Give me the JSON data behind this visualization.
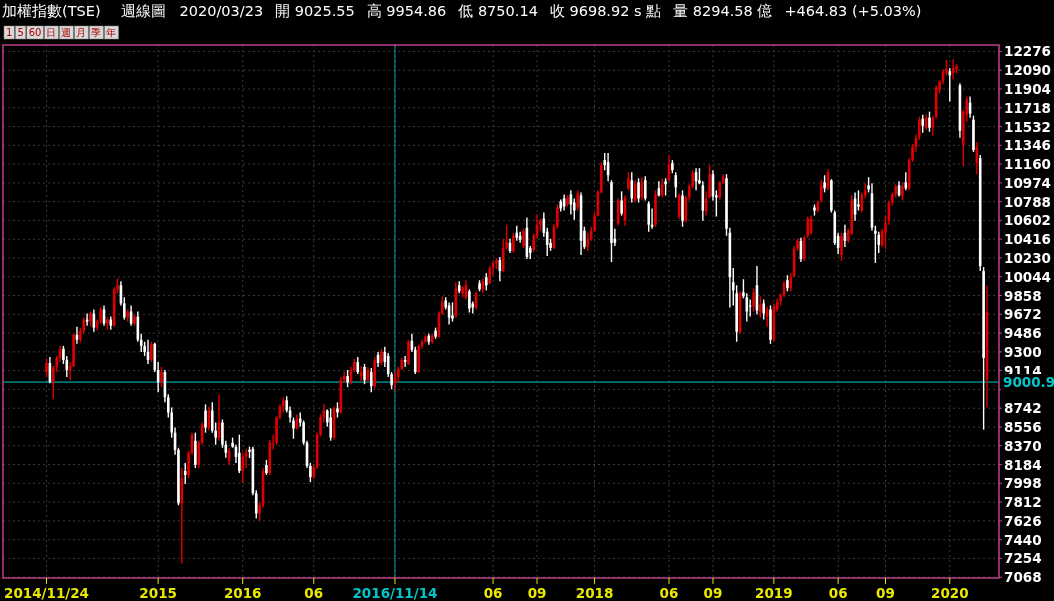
{
  "chart_data": {
    "type": "candlestick",
    "title": "加權指數(TSE)",
    "subtitle": "週線圖",
    "annotations": [
      "2020/03/23",
      "開 9025.55",
      "高 9954.86",
      "低 8750.14",
      "收 9698.92 s 點",
      "量 8294.58 億",
      "+464.83 (+5.03%)",
      "1",
      "5",
      "60",
      "日",
      "週",
      "月",
      "季",
      "年"
    ],
    "categories": [
      "2014/11/24",
      null,
      null,
      null,
      null,
      null,
      null,
      null,
      null,
      null,
      null,
      null,
      null,
      null,
      null,
      null,
      null,
      null,
      null,
      null,
      null,
      null,
      null,
      null,
      null,
      null,
      null,
      null,
      null,
      null,
      null,
      null,
      null,
      "2015",
      null,
      null,
      null,
      null,
      null,
      null,
      null,
      null,
      null,
      null,
      null,
      null,
      null,
      null,
      null,
      null,
      null,
      null,
      null,
      null,
      null,
      null,
      null,
      null,
      "2016",
      null,
      null,
      null,
      null,
      null,
      null,
      null,
      null,
      null,
      null,
      null,
      null,
      null,
      null,
      null,
      null,
      null,
      null,
      null,
      null,
      "06",
      null,
      null,
      null,
      null,
      null,
      null,
      null,
      null,
      null,
      null,
      null,
      null,
      null,
      null,
      null,
      null,
      null,
      null,
      null,
      null,
      null,
      null,
      null,
      "2016/11/14",
      null,
      null,
      null,
      null,
      null,
      null,
      null,
      null,
      null,
      null,
      null,
      null,
      null,
      null,
      null,
      null,
      null,
      null,
      null,
      null,
      null,
      null,
      null,
      null,
      null,
      null,
      null,
      null,
      "06",
      null,
      null,
      null,
      null,
      null,
      null,
      null,
      null,
      null,
      null,
      null,
      null,
      "09",
      null,
      null,
      null,
      null,
      null,
      null,
      null,
      null,
      null,
      null,
      null,
      null,
      null,
      null,
      null,
      null,
      "2018",
      null,
      null,
      null,
      null,
      null,
      null,
      null,
      null,
      null,
      null,
      null,
      null,
      null,
      null,
      null,
      null,
      null,
      null,
      null,
      null,
      null,
      "06",
      null,
      null,
      null,
      null,
      null,
      null,
      null,
      null,
      null,
      null,
      null,
      null,
      "09",
      null,
      null,
      null,
      null,
      null,
      null,
      null,
      null,
      null,
      null,
      null,
      null,
      null,
      null,
      null,
      null,
      null,
      "2019",
      null,
      null,
      null,
      null,
      null,
      null,
      null,
      null,
      null,
      null,
      null,
      null,
      null,
      null,
      null,
      null,
      null,
      null,
      "06",
      null,
      null,
      null,
      null,
      null,
      null,
      null,
      null,
      null,
      null,
      null,
      null,
      null,
      "09",
      null,
      null,
      null,
      null,
      null,
      null,
      null,
      null,
      null,
      null,
      null,
      null,
      null,
      null,
      null,
      null,
      null,
      null,
      "2020",
      null,
      null,
      null,
      null,
      null,
      null,
      null,
      null,
      null,
      null,
      null
    ],
    "ohlc": [
      [
        9100,
        9230,
        9050,
        9190
      ],
      [
        9190,
        9250,
        8990,
        9000
      ],
      [
        9000,
        9160,
        8830,
        9150
      ],
      [
        9150,
        9260,
        9100,
        9240
      ],
      [
        9240,
        9360,
        9200,
        9330
      ],
      [
        9330,
        9360,
        9180,
        9220
      ],
      [
        9220,
        9260,
        9050,
        9120
      ],
      [
        9120,
        9200,
        9020,
        9160
      ],
      [
        9160,
        9480,
        9150,
        9470
      ],
      [
        9470,
        9550,
        9380,
        9420
      ],
      [
        9420,
        9540,
        9390,
        9510
      ],
      [
        9510,
        9640,
        9480,
        9620
      ],
      [
        9620,
        9680,
        9560,
        9600
      ],
      [
        9600,
        9700,
        9550,
        9680
      ],
      [
        9680,
        9720,
        9500,
        9540
      ],
      [
        9540,
        9620,
        9510,
        9600
      ],
      [
        9600,
        9740,
        9580,
        9720
      ],
      [
        9720,
        9760,
        9560,
        9580
      ],
      [
        9580,
        9640,
        9520,
        9620
      ],
      [
        9620,
        9650,
        9520,
        9560
      ],
      [
        9560,
        9940,
        9550,
        9920
      ],
      [
        9920,
        10030,
        9880,
        9960
      ],
      [
        9960,
        10000,
        9760,
        9780
      ],
      [
        9780,
        9840,
        9620,
        9640
      ],
      [
        9640,
        9720,
        9600,
        9700
      ],
      [
        9700,
        9760,
        9560,
        9580
      ],
      [
        9580,
        9670,
        9560,
        9650
      ],
      [
        9650,
        9700,
        9400,
        9420
      ],
      [
        9420,
        9480,
        9300,
        9360
      ],
      [
        9360,
        9400,
        9260,
        9300
      ],
      [
        9300,
        9420,
        9180,
        9220
      ],
      [
        9220,
        9400,
        9200,
        9380
      ],
      [
        9380,
        9390,
        9100,
        9120
      ],
      [
        9120,
        9200,
        8900,
        9000
      ],
      [
        9000,
        9150,
        8950,
        9100
      ],
      [
        9100,
        9120,
        8800,
        8850
      ],
      [
        8850,
        8880,
        8650,
        8700
      ],
      [
        8700,
        8750,
        8450,
        8500
      ],
      [
        8500,
        8550,
        8280,
        8330
      ],
      [
        8330,
        8350,
        7780,
        7800
      ],
      [
        7800,
        8150,
        7203,
        8050
      ],
      [
        8120,
        8200,
        7990,
        8080
      ],
      [
        8080,
        8320,
        8050,
        8300
      ],
      [
        8300,
        8500,
        8280,
        8480
      ],
      [
        8420,
        8500,
        8150,
        8180
      ],
      [
        8180,
        8420,
        8150,
        8400
      ],
      [
        8400,
        8600,
        8380,
        8580
      ],
      [
        8720,
        8780,
        8500,
        8550
      ],
      [
        8550,
        8760,
        8520,
        8720
      ],
      [
        8720,
        8800,
        8500,
        8520
      ],
      [
        8520,
        8600,
        8380,
        8450
      ],
      [
        8450,
        8880,
        8420,
        8600
      ],
      [
        8600,
        8630,
        8350,
        8380
      ],
      [
        8380,
        8420,
        8250,
        8300
      ],
      [
        8220,
        8350,
        8180,
        8320
      ],
      [
        8400,
        8450,
        8350,
        8360
      ],
      [
        8360,
        8380,
        8200,
        8260
      ],
      [
        8300,
        8480,
        8100,
        8120
      ],
      [
        8120,
        8300,
        8000,
        8260
      ],
      [
        8260,
        8340,
        8150,
        8300
      ],
      [
        8330,
        8360,
        8250,
        8310
      ],
      [
        8340,
        8360,
        7880,
        7900
      ],
      [
        7900,
        7930,
        7650,
        7700
      ],
      [
        7700,
        7810,
        7627,
        7780
      ],
      [
        7780,
        8150,
        7760,
        8120
      ],
      [
        8180,
        8230,
        8080,
        8100
      ],
      [
        8100,
        8430,
        8080,
        8400
      ],
      [
        8400,
        8480,
        8330,
        8400
      ],
      [
        8400,
        8660,
        8380,
        8650
      ],
      [
        8650,
        8780,
        8630,
        8760
      ],
      [
        8760,
        8850,
        8700,
        8820
      ],
      [
        8820,
        8860,
        8700,
        8720
      ],
      [
        8720,
        8760,
        8600,
        8650
      ],
      [
        8620,
        8650,
        8440,
        8540
      ],
      [
        8540,
        8680,
        8530,
        8640
      ],
      [
        8640,
        8700,
        8560,
        8600
      ],
      [
        8600,
        8620,
        8380,
        8400
      ],
      [
        8400,
        8420,
        8150,
        8170
      ],
      [
        8170,
        8200,
        8010,
        8060
      ],
      [
        8060,
        8180,
        8040,
        8160
      ],
      [
        8160,
        8500,
        8140,
        8480
      ],
      [
        8480,
        8680,
        8460,
        8650
      ],
      [
        8650,
        8780,
        8600,
        8720
      ],
      [
        8720,
        8730,
        8560,
        8600
      ],
      [
        8650,
        8740,
        8420,
        8450
      ],
      [
        8450,
        8760,
        8430,
        8740
      ],
      [
        8740,
        8800,
        8650,
        8700
      ],
      [
        8700,
        9050,
        8690,
        9020
      ],
      [
        9020,
        9100,
        8990,
        9060
      ],
      [
        9060,
        9120,
        8950,
        9000
      ],
      [
        9000,
        9150,
        8980,
        9120
      ],
      [
        9120,
        9230,
        9100,
        9200
      ],
      [
        9200,
        9250,
        9080,
        9100
      ],
      [
        9060,
        9160,
        9010,
        9100
      ],
      [
        9150,
        9180,
        8980,
        9020
      ],
      [
        9020,
        9150,
        9000,
        9120
      ],
      [
        9100,
        9140,
        8900,
        8960
      ],
      [
        8960,
        9250,
        8940,
        9220
      ],
      [
        9270,
        9300,
        9150,
        9190
      ],
      [
        9190,
        9330,
        9170,
        9300
      ],
      [
        9300,
        9350,
        9150,
        9200
      ],
      [
        9260,
        9290,
        9050,
        9080
      ],
      [
        9080,
        9100,
        8930,
        8970
      ],
      [
        8990,
        9100,
        8920,
        9050
      ],
      [
        9050,
        9150,
        9000,
        9130
      ],
      [
        9130,
        9240,
        9120,
        9220
      ],
      [
        9220,
        9260,
        9150,
        9200
      ],
      [
        9180,
        9420,
        9170,
        9400
      ],
      [
        9410,
        9480,
        9300,
        9320
      ],
      [
        9320,
        9350,
        9080,
        9100
      ],
      [
        9100,
        9370,
        9090,
        9360
      ],
      [
        9360,
        9420,
        9330,
        9400
      ],
      [
        9400,
        9470,
        9390,
        9450
      ],
      [
        9460,
        9480,
        9370,
        9400
      ],
      [
        9400,
        9480,
        9380,
        9460
      ],
      [
        9510,
        9540,
        9430,
        9450
      ],
      [
        9450,
        9700,
        9440,
        9680
      ],
      [
        9680,
        9850,
        9670,
        9790
      ],
      [
        9810,
        9840,
        9720,
        9740
      ],
      [
        9760,
        9790,
        9570,
        9640
      ],
      [
        9660,
        9790,
        9600,
        9630
      ],
      [
        9650,
        9990,
        9640,
        9930
      ],
      [
        9960,
        10000,
        9880,
        9900
      ],
      [
        9880,
        9950,
        9840,
        9940
      ],
      [
        9840,
        10010,
        9820,
        9960
      ],
      [
        9900,
        9920,
        9690,
        9730
      ],
      [
        9780,
        9800,
        9680,
        9740
      ],
      [
        9740,
        9900,
        9720,
        9880
      ],
      [
        9980,
        10010,
        9900,
        9920
      ],
      [
        9920,
        10030,
        9880,
        10000
      ],
      [
        10040,
        10080,
        9910,
        9960
      ],
      [
        9980,
        10150,
        9970,
        10130
      ],
      [
        10130,
        10200,
        10060,
        10180
      ],
      [
        10180,
        10230,
        10120,
        10210
      ],
      [
        10210,
        10240,
        10000,
        10100
      ],
      [
        10100,
        10420,
        10090,
        10330
      ],
      [
        10330,
        10560,
        10310,
        10390
      ],
      [
        10380,
        10420,
        10280,
        10300
      ],
      [
        10300,
        10480,
        10280,
        10450
      ],
      [
        10480,
        10550,
        10400,
        10430
      ],
      [
        10450,
        10490,
        10380,
        10410
      ],
      [
        10350,
        10520,
        10330,
        10500
      ],
      [
        10530,
        10630,
        10220,
        10240
      ],
      [
        10330,
        10350,
        10220,
        10280
      ],
      [
        10310,
        10470,
        10290,
        10450
      ],
      [
        10450,
        10660,
        10420,
        10560
      ],
      [
        10560,
        10620,
        10500,
        10600
      ],
      [
        10620,
        10680,
        10440,
        10480
      ],
      [
        10490,
        10530,
        10250,
        10360
      ],
      [
        10380,
        10420,
        10300,
        10330
      ],
      [
        10330,
        10570,
        10320,
        10540
      ],
      [
        10540,
        10760,
        10520,
        10730
      ],
      [
        10790,
        10810,
        10690,
        10720
      ],
      [
        10820,
        10860,
        10700,
        10740
      ],
      [
        10760,
        10850,
        10740,
        10830
      ],
      [
        10860,
        10900,
        10660,
        10760
      ],
      [
        10780,
        10820,
        10610,
        10700
      ],
      [
        10730,
        10900,
        10700,
        10870
      ],
      [
        10850,
        10880,
        10260,
        10400
      ],
      [
        10500,
        10540,
        10320,
        10340
      ],
      [
        10340,
        10480,
        10300,
        10420
      ],
      [
        10420,
        10540,
        10400,
        10500
      ],
      [
        10500,
        10680,
        10490,
        10650
      ],
      [
        10650,
        10900,
        10640,
        10880
      ],
      [
        10880,
        11180,
        10870,
        11150
      ],
      [
        11200,
        11270,
        11100,
        11150
      ],
      [
        11180,
        11270,
        10990,
        11050
      ],
      [
        10980,
        11000,
        10190,
        10380
      ],
      [
        10420,
        10520,
        10350,
        10380
      ],
      [
        10570,
        10820,
        10550,
        10800
      ],
      [
        10800,
        10890,
        10650,
        10670
      ],
      [
        10600,
        10850,
        10550,
        10830
      ],
      [
        10920,
        11080,
        10900,
        11020
      ],
      [
        11000,
        11080,
        10780,
        10820
      ],
      [
        10800,
        11000,
        10780,
        10960
      ],
      [
        10980,
        11020,
        10780,
        10820
      ],
      [
        10830,
        11030,
        10800,
        10980
      ],
      [
        11000,
        11040,
        10800,
        10820
      ],
      [
        10770,
        10790,
        10490,
        10560
      ],
      [
        10560,
        10720,
        10520,
        10540
      ],
      [
        10560,
        10900,
        10540,
        10860
      ],
      [
        10920,
        10990,
        10840,
        10850
      ],
      [
        10850,
        11020,
        10830,
        10960
      ],
      [
        10990,
        11020,
        10850,
        10960
      ],
      [
        11000,
        11250,
        10990,
        11160
      ],
      [
        11170,
        11200,
        11070,
        11100
      ],
      [
        11050,
        11080,
        10830,
        10930
      ],
      [
        10640,
        10870,
        10620,
        10850
      ],
      [
        10850,
        10900,
        10540,
        10600
      ],
      [
        10600,
        10850,
        10580,
        10830
      ],
      [
        10830,
        10960,
        10800,
        10940
      ],
      [
        10940,
        11100,
        10920,
        11070
      ],
      [
        11080,
        11120,
        10900,
        10990
      ],
      [
        11000,
        11120,
        10960,
        10970
      ],
      [
        10950,
        10990,
        10600,
        10700
      ],
      [
        10690,
        10890,
        10650,
        10820
      ],
      [
        10830,
        11150,
        10820,
        11060
      ],
      [
        11060,
        11100,
        10800,
        10840
      ],
      [
        10850,
        10900,
        10640,
        10830
      ],
      [
        10830,
        10990,
        10810,
        10980
      ],
      [
        10980,
        11060,
        10960,
        11040
      ],
      [
        11020,
        11060,
        10450,
        10520
      ],
      [
        10480,
        10530,
        9740,
        10040
      ],
      [
        9990,
        10130,
        9760,
        9910
      ],
      [
        9880,
        9960,
        9400,
        9500
      ],
      [
        9500,
        9900,
        9480,
        9880
      ],
      [
        9890,
        10020,
        9830,
        9850
      ],
      [
        9840,
        9880,
        9600,
        9700
      ],
      [
        9760,
        9820,
        9650,
        9750
      ],
      [
        9750,
        9930,
        9700,
        9890
      ],
      [
        9960,
        10150,
        9670,
        9710
      ],
      [
        9690,
        9850,
        9640,
        9770
      ],
      [
        9780,
        9820,
        9620,
        9680
      ],
      [
        9650,
        9750,
        9550,
        9720
      ],
      [
        9720,
        9760,
        9380,
        9420
      ],
      [
        9420,
        9780,
        9400,
        9750
      ],
      [
        9720,
        9830,
        9700,
        9800
      ],
      [
        9800,
        9880,
        9760,
        9860
      ],
      [
        9860,
        10000,
        9840,
        9980
      ],
      [
        10010,
        10060,
        9900,
        9930
      ],
      [
        9930,
        10080,
        9900,
        10040
      ],
      [
        10050,
        10350,
        10040,
        10320
      ],
      [
        10320,
        10420,
        10300,
        10400
      ],
      [
        10400,
        10430,
        10190,
        10220
      ],
      [
        10220,
        10450,
        10200,
        10430
      ],
      [
        10450,
        10640,
        10430,
        10620
      ],
      [
        10480,
        10650,
        10460,
        10620
      ],
      [
        10730,
        10760,
        10650,
        10700
      ],
      [
        10700,
        10800,
        10680,
        10780
      ],
      [
        10800,
        11000,
        10780,
        10950
      ],
      [
        10980,
        11050,
        10880,
        10920
      ],
      [
        10920,
        11110,
        10900,
        11080
      ],
      [
        11000,
        11010,
        10680,
        10700
      ],
      [
        10680,
        10700,
        10360,
        10380
      ],
      [
        10450,
        10480,
        10270,
        10330
      ],
      [
        10260,
        10480,
        10200,
        10450
      ],
      [
        10480,
        10560,
        10340,
        10400
      ],
      [
        10400,
        10520,
        10380,
        10500
      ],
      [
        10470,
        10850,
        10460,
        10800
      ],
      [
        10820,
        10880,
        10600,
        10660
      ],
      [
        10760,
        10900,
        10700,
        10740
      ],
      [
        10700,
        10880,
        10680,
        10850
      ],
      [
        10850,
        10970,
        10820,
        10900
      ],
      [
        10950,
        11030,
        10880,
        10910
      ],
      [
        10870,
        10970,
        10500,
        10530
      ],
      [
        10500,
        10550,
        10180,
        10470
      ],
      [
        10460,
        10490,
        10280,
        10360
      ],
      [
        10360,
        10520,
        10340,
        10500
      ],
      [
        10480,
        10650,
        10320,
        10580
      ],
      [
        10600,
        10800,
        10560,
        10780
      ],
      [
        10780,
        10880,
        10750,
        10860
      ],
      [
        10860,
        10960,
        10830,
        10940
      ],
      [
        10950,
        10990,
        10840,
        10850
      ],
      [
        10850,
        10980,
        10800,
        10940
      ],
      [
        10980,
        11080,
        10900,
        10920
      ],
      [
        10920,
        11220,
        10900,
        11200
      ],
      [
        11200,
        11360,
        11180,
        11330
      ],
      [
        11330,
        11450,
        11280,
        11420
      ],
      [
        11430,
        11630,
        11400,
        11600
      ],
      [
        11610,
        11650,
        11470,
        11540
      ],
      [
        11520,
        11650,
        11500,
        11620
      ],
      [
        11620,
        11680,
        11480,
        11520
      ],
      [
        11520,
        11640,
        11440,
        11620
      ],
      [
        11630,
        11940,
        11610,
        11920
      ],
      [
        11900,
        11990,
        11860,
        11980
      ],
      [
        11980,
        12100,
        11950,
        12070
      ],
      [
        12060,
        12190,
        12040,
        12100
      ],
      [
        12080,
        12110,
        11780,
        12040
      ],
      [
        12060,
        12200,
        12000,
        12110
      ],
      [
        12100,
        12150,
        12060,
        12130
      ],
      [
        11940,
        11960,
        11420,
        11490
      ],
      [
        11350,
        11700,
        11140,
        11680
      ],
      [
        11650,
        11830,
        11580,
        11800
      ],
      [
        11770,
        11830,
        11620,
        11660
      ],
      [
        11600,
        11640,
        11280,
        11300
      ],
      [
        11170,
        11380,
        11060,
        11330
      ],
      [
        11220,
        11250,
        10100,
        10150
      ],
      [
        10100,
        10140,
        8530,
        9240
      ],
      [
        9025.55,
        9954.86,
        8750.14,
        9698.92
      ]
    ],
    "colors": [
      "#e00000",
      "#ffffff",
      "#e00000",
      "#e00000",
      "#e00000",
      "#ffffff",
      "#ffffff",
      "#e00000",
      "#e00000",
      "#ffffff",
      "#e00000",
      "#e00000",
      "#ffffff",
      "#e00000",
      "#ffffff",
      "#e00000",
      "#e00000",
      "#ffffff",
      "#e00000",
      "#ffffff",
      "#e00000",
      "#e00000",
      "#ffffff",
      "#ffffff",
      "#e00000",
      "#ffffff",
      "#e00000",
      "#ffffff",
      "#ffffff",
      "#ffffff",
      "#ffffff",
      "#e00000",
      "#ffffff",
      "#ffffff",
      "#e00000",
      "#ffffff",
      "#ffffff",
      "#ffffff",
      "#ffffff",
      "#ffffff",
      "#e00000",
      "#ffffff",
      "#e00000",
      "#e00000",
      "#ffffff",
      "#e00000",
      "#e00000",
      "#ffffff",
      "#e00000",
      "#ffffff",
      "#ffffff",
      "#e00000",
      "#ffffff",
      "#ffffff",
      "#e00000",
      "#ffffff",
      "#ffffff",
      "#ffffff",
      "#e00000",
      "#e00000",
      "#ffffff",
      "#ffffff",
      "#ffffff",
      "#e00000",
      "#e00000",
      "#ffffff",
      "#e00000",
      "#e00000",
      "#e00000",
      "#e00000",
      "#e00000",
      "#ffffff",
      "#ffffff",
      "#ffffff",
      "#e00000",
      "#ffffff",
      "#ffffff",
      "#ffffff",
      "#ffffff",
      "#e00000",
      "#e00000",
      "#e00000",
      "#e00000",
      "#ffffff",
      "#ffffff",
      "#e00000",
      "#ffffff",
      "#e00000",
      "#e00000",
      "#ffffff",
      "#e00000",
      "#e00000",
      "#ffffff",
      "#e00000",
      "#ffffff",
      "#e00000",
      "#ffffff",
      "#e00000",
      "#ffffff",
      "#e00000",
      "#ffffff",
      "#ffffff",
      "#ffffff",
      "#e00000",
      "#e00000",
      "#e00000",
      "#ffffff",
      "#e00000",
      "#ffffff",
      "#ffffff",
      "#e00000",
      "#e00000",
      "#e00000",
      "#ffffff",
      "#e00000",
      "#ffffff",
      "#e00000",
      "#e00000",
      "#ffffff",
      "#ffffff",
      "#ffffff",
      "#e00000",
      "#ffffff",
      "#e00000",
      "#e00000",
      "#ffffff",
      "#ffffff",
      "#e00000",
      "#ffffff",
      "#e00000",
      "#ffffff",
      "#e00000",
      "#e00000",
      "#e00000",
      "#ffffff",
      "#e00000",
      "#e00000",
      "#ffffff",
      "#e00000",
      "#ffffff",
      "#ffffff",
      "#e00000",
      "#ffffff",
      "#ffffff",
      "#e00000",
      "#e00000",
      "#e00000",
      "#ffffff",
      "#ffffff",
      "#ffffff",
      "#e00000",
      "#e00000",
      "#ffffff",
      "#ffffff",
      "#e00000",
      "#ffffff",
      "#ffffff",
      "#e00000",
      "#ffffff",
      "#ffffff",
      "#e00000",
      "#e00000",
      "#e00000",
      "#e00000",
      "#e00000",
      "#ffffff",
      "#ffffff",
      "#ffffff",
      "#ffffff",
      "#e00000",
      "#ffffff",
      "#e00000",
      "#e00000",
      "#ffffff",
      "#e00000",
      "#ffffff",
      "#e00000",
      "#ffffff",
      "#ffffff",
      "#ffffff",
      "#e00000",
      "#ffffff",
      "#e00000",
      "#ffffff",
      "#e00000",
      "#ffffff",
      "#ffffff",
      "#e00000",
      "#ffffff",
      "#e00000",
      "#e00000",
      "#e00000",
      "#ffffff",
      "#ffffff",
      "#ffffff",
      "#e00000",
      "#e00000",
      "#ffffff",
      "#ffffff",
      "#e00000",
      "#e00000",
      "#ffffff",
      "#ffffff",
      "#ffffff",
      "#ffffff",
      "#e00000",
      "#ffffff",
      "#ffffff",
      "#ffffff",
      "#e00000",
      "#ffffff",
      "#e00000",
      "#ffffff",
      "#e00000",
      "#ffffff",
      "#e00000",
      "#e00000",
      "#e00000",
      "#e00000",
      "#ffffff",
      "#e00000",
      "#e00000",
      "#e00000",
      "#ffffff",
      "#e00000",
      "#e00000",
      "#e00000",
      "#ffffff",
      "#e00000",
      "#e00000",
      "#ffffff",
      "#e00000",
      "#ffffff",
      "#ffffff",
      "#ffffff",
      "#e00000",
      "#ffffff",
      "#e00000",
      "#e00000",
      "#ffffff",
      "#ffffff",
      "#e00000",
      "#e00000",
      "#ffffff",
      "#ffffff",
      "#ffffff",
      "#ffffff",
      "#e00000",
      "#e00000",
      "#e00000",
      "#e00000",
      "#e00000",
      "#ffffff",
      "#e00000",
      "#ffffff",
      "#e00000",
      "#e00000",
      "#e00000",
      "#e00000",
      "#ffffff",
      "#e00000",
      "#ffffff",
      "#e00000",
      "#e00000",
      "#e00000",
      "#e00000",
      "#e00000",
      "#ffffff",
      "#e00000",
      "#e00000",
      "#ffffff",
      "#e00000",
      "#e00000",
      "#ffffff",
      "#ffffff",
      "#e00000",
      "#ffffff",
      "#ffffff",
      "#e00000"
    ],
    "ylim": [
      7060,
      12340
    ],
    "yticks": [
      7068,
      7254,
      7440,
      7626,
      7812,
      7998,
      8184,
      8370,
      8556,
      8742,
      {
        "value": 8928,
        "label": null
      },
      9114,
      9300,
      9486,
      9672,
      9858,
      10044,
      10230,
      10416,
      10602,
      10788,
      10974,
      11160,
      11346,
      11532,
      11718,
      11904,
      12090,
      12276
    ],
    "grid": true,
    "ref_lines": [
      {
        "axis": "y",
        "value": 9000.9,
        "label": "9000.9",
        "color": "#00c8c8"
      },
      {
        "axis": "x",
        "value": "2016/11/14",
        "color": "#00c8c8"
      }
    ]
  }
}
